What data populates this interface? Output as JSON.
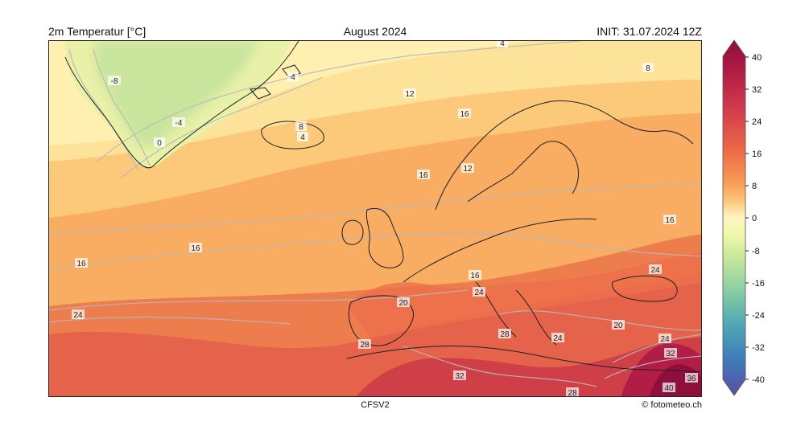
{
  "header": {
    "variable": "2m Temperatur [°C]",
    "period": "August 2024",
    "init": "INIT: 31.07.2024 12Z"
  },
  "footer": {
    "model": "CFSV2",
    "credit": "© fotometeo.ch"
  },
  "colorbar": {
    "ticks": [
      "40",
      "32",
      "24",
      "16",
      "8",
      "0",
      "-8",
      "-16",
      "-24",
      "-32",
      "-40"
    ],
    "min": -40,
    "max": 40
  },
  "map": {
    "region": "Europe / North Atlantic",
    "contour_labels": [
      "-8",
      "-4",
      "0",
      "4",
      "4",
      "8",
      "4",
      "8",
      "12",
      "16",
      "16",
      "12",
      "16",
      "16",
      "16",
      "16",
      "24",
      "24",
      "20",
      "16",
      "24",
      "28",
      "28",
      "20",
      "24",
      "24",
      "32",
      "28",
      "32",
      "36",
      "40"
    ],
    "colors": {
      "cold": "#c4e59a",
      "cool": "#fff2b0",
      "mild": "#fdd985",
      "warm": "#f7a65a",
      "hot": "#e05a42",
      "very_hot": "#b51f44"
    }
  }
}
